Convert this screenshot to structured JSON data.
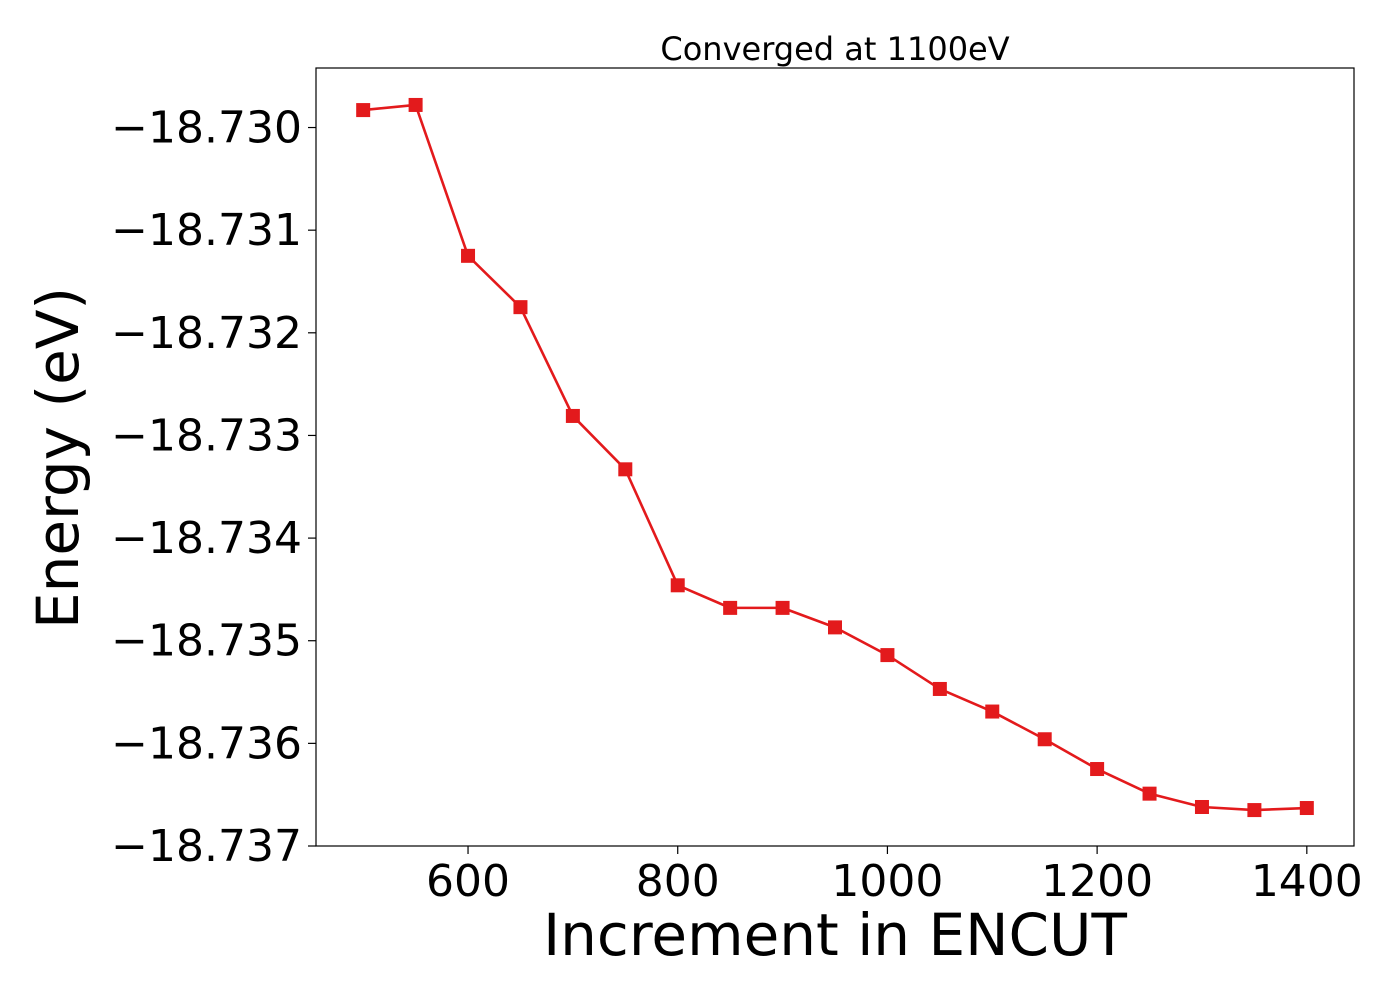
{
  "chart_data": {
    "type": "line",
    "title": "Converged at 1100eV",
    "xlabel": "Increment in ENCUT",
    "ylabel": "Energy (eV)",
    "xlim": [
      455,
      1445
    ],
    "ylim": [
      -18.737,
      -18.72942
    ],
    "x_ticks": [
      600,
      800,
      1000,
      1200,
      1400
    ],
    "x_tick_labels": [
      "600",
      "800",
      "1000",
      "1200",
      "1400"
    ],
    "y_ticks": [
      -18.73,
      -18.731,
      -18.732,
      -18.733,
      -18.734,
      -18.735,
      -18.736,
      -18.737
    ],
    "y_tick_labels": [
      "−18.730",
      "−18.731",
      "−18.732",
      "−18.733",
      "−18.734",
      "−18.735",
      "−18.736",
      "−18.737"
    ],
    "grid": false,
    "marker": "square",
    "series": [
      {
        "color": "#e31a1c",
        "x": [
          500,
          550,
          600,
          650,
          700,
          750,
          800,
          850,
          900,
          950,
          1000,
          1050,
          1100,
          1150,
          1200,
          1250,
          1300,
          1350,
          1400
        ],
        "y": [
          -18.72983,
          -18.72978,
          -18.73125,
          -18.73175,
          -18.73281,
          -18.73333,
          -18.73446,
          -18.73468,
          -18.73468,
          -18.73487,
          -18.73514,
          -18.73547,
          -18.73569,
          -18.73596,
          -18.73625,
          -18.73649,
          -18.73662,
          -18.73665,
          -18.73663
        ]
      }
    ]
  }
}
